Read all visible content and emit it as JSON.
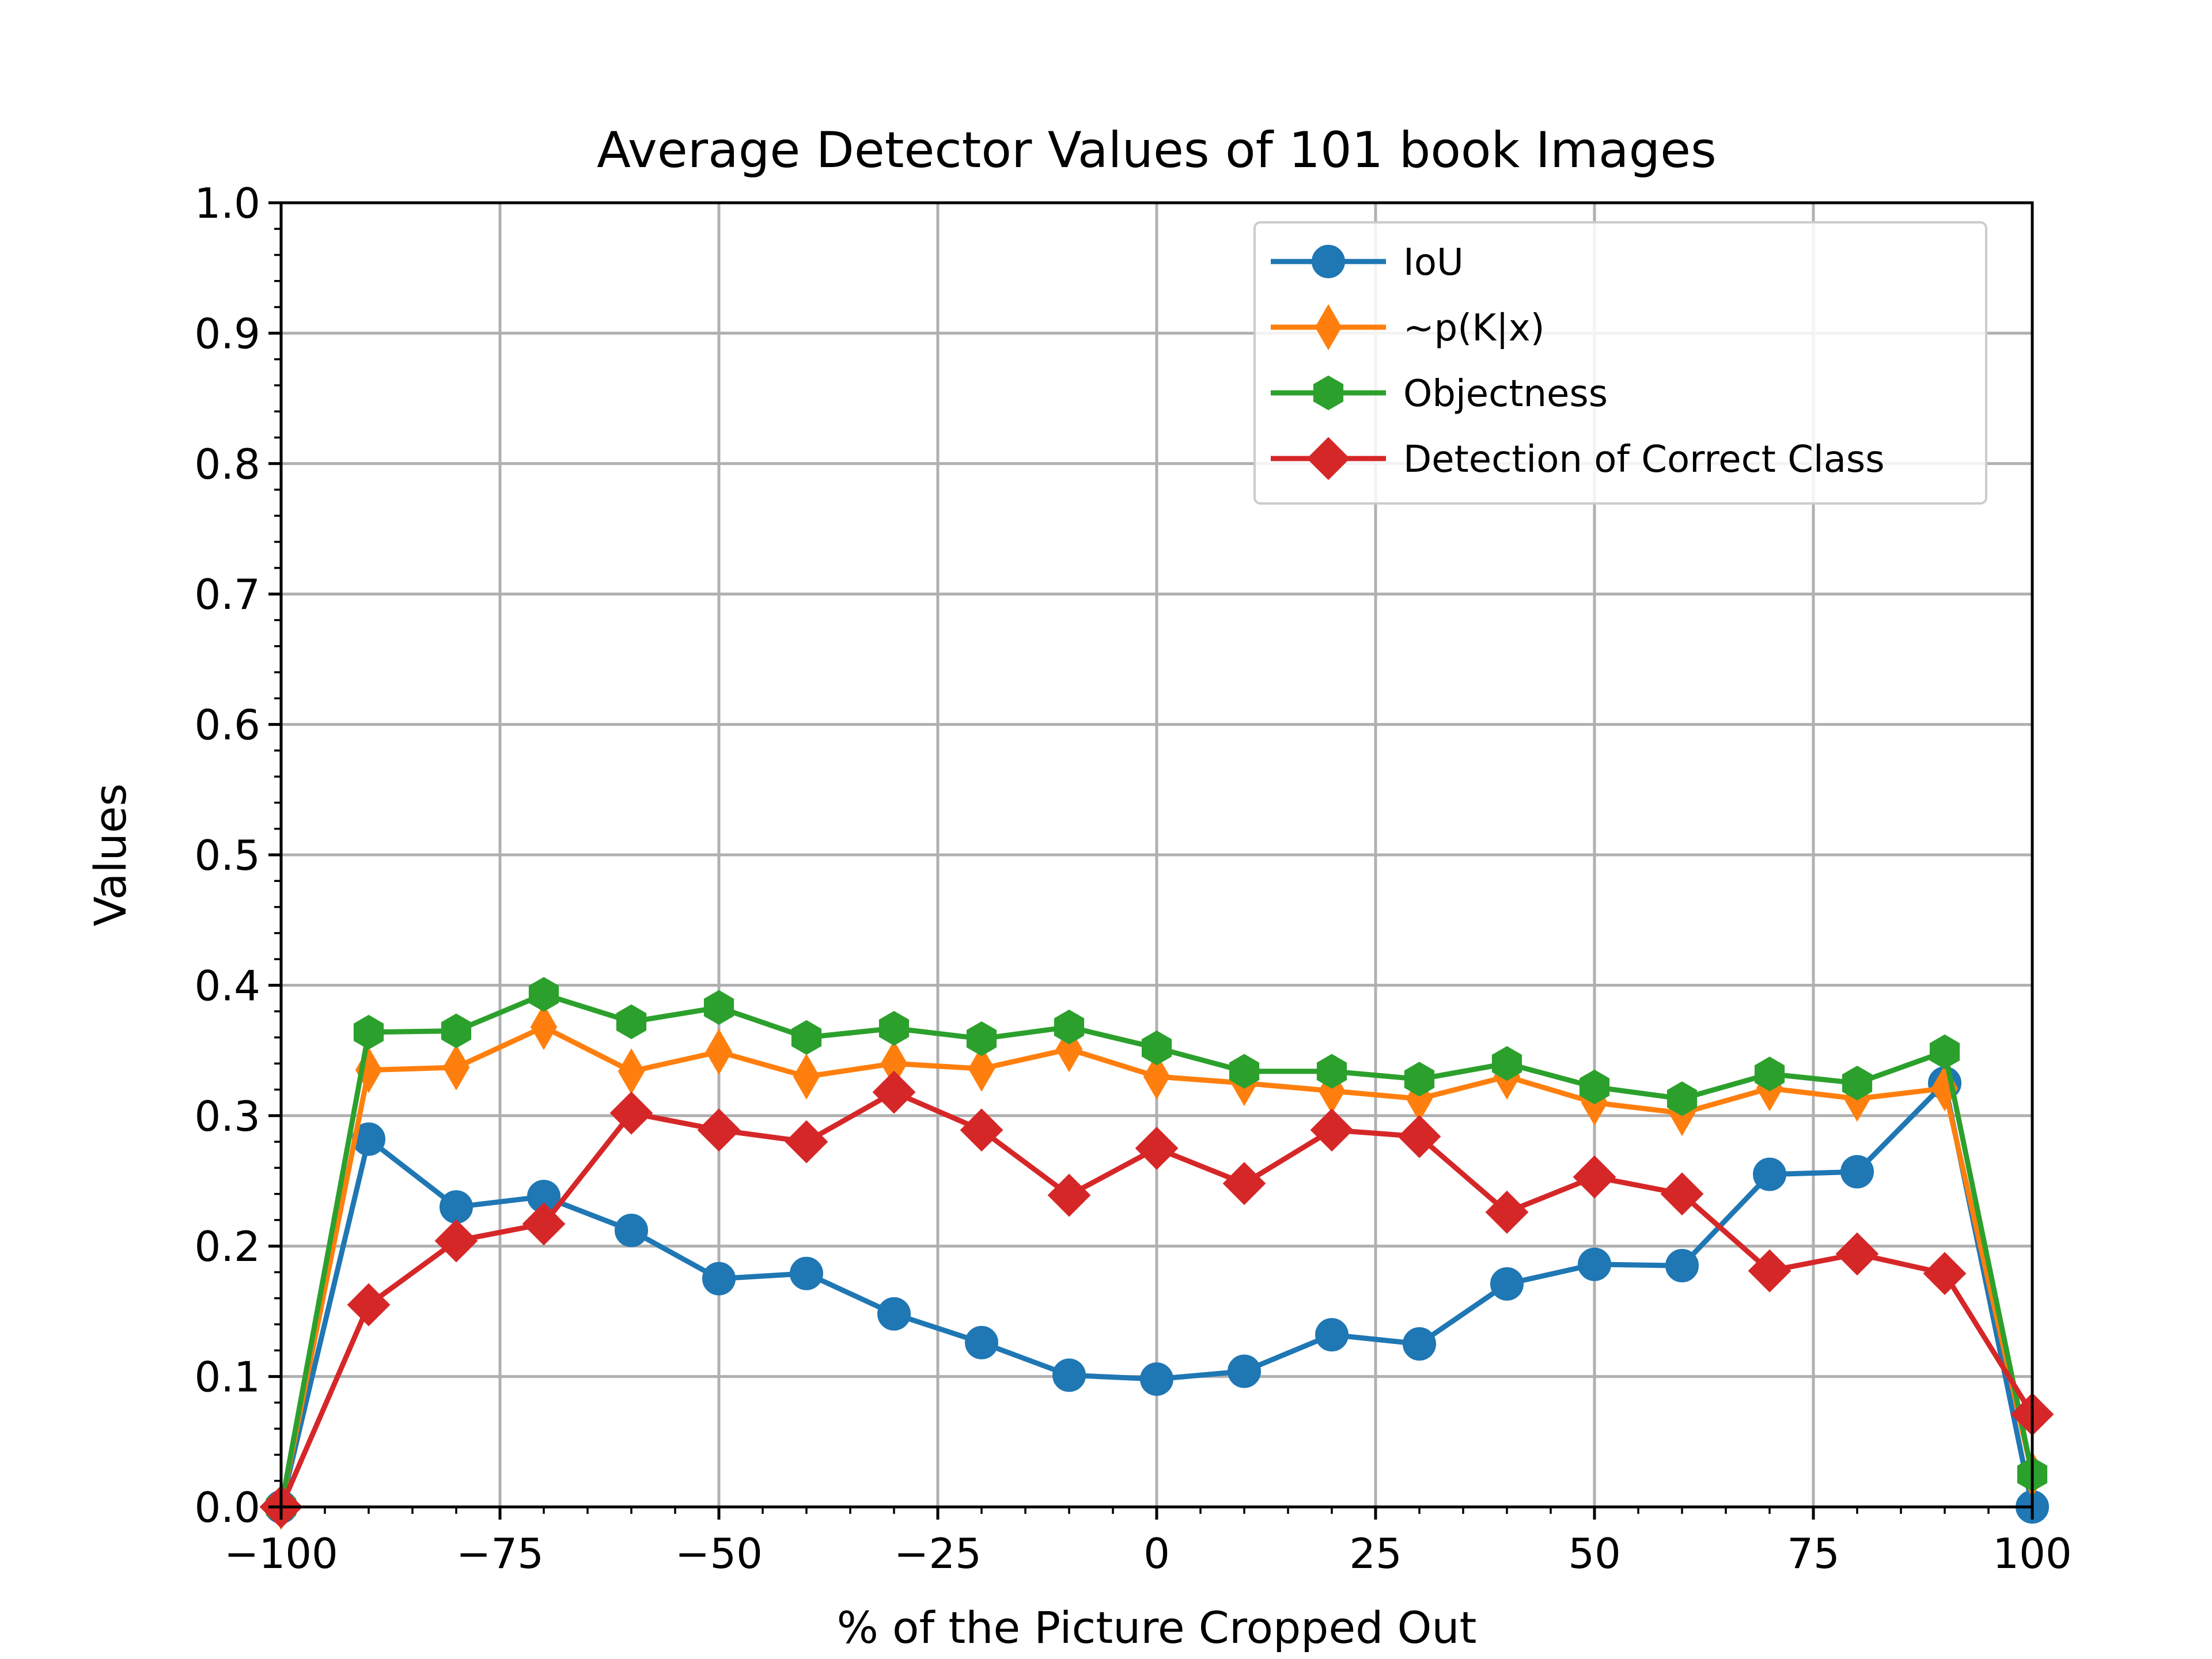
{
  "chart_data": {
    "type": "line",
    "title": "Average Detector Values of 101 book Images",
    "xlabel": "% of the Picture Cropped Out",
    "ylabel": "Values",
    "xlim": [
      -100,
      100
    ],
    "ylim": [
      0,
      1
    ],
    "xticks": [
      "−100",
      "−75",
      "−50",
      "−25",
      "0",
      "25",
      "50",
      "75",
      "100"
    ],
    "yticks": [
      "0.0",
      "0.1",
      "0.2",
      "0.3",
      "0.4",
      "0.5",
      "0.6",
      "0.7",
      "0.8",
      "0.9",
      "1.0"
    ],
    "grid": true,
    "legend_position": "top-right",
    "x": [
      -100,
      -90,
      -80,
      -70,
      -60,
      -50,
      -40,
      -30,
      -20,
      -10,
      0,
      10,
      20,
      30,
      40,
      50,
      60,
      70,
      80,
      90,
      100
    ],
    "series": [
      {
        "name": "IoU",
        "color": "#1f77b4",
        "marker": "circle",
        "values": [
          0.0,
          0.282,
          0.23,
          0.238,
          0.212,
          0.175,
          0.179,
          0.148,
          0.126,
          0.101,
          0.098,
          0.104,
          0.132,
          0.125,
          0.171,
          0.186,
          0.185,
          0.255,
          0.257,
          0.325,
          0.0
        ]
      },
      {
        "name": "~p(K|x)",
        "color": "#ff7f0e",
        "marker": "thin-diamond",
        "values": [
          0.0,
          0.335,
          0.337,
          0.368,
          0.334,
          0.349,
          0.33,
          0.34,
          0.336,
          0.351,
          0.33,
          0.325,
          0.319,
          0.313,
          0.33,
          0.31,
          0.302,
          0.321,
          0.313,
          0.321,
          0.025
        ]
      },
      {
        "name": "Objectness",
        "color": "#2ca02c",
        "marker": "hexagon",
        "values": [
          0.0,
          0.364,
          0.365,
          0.393,
          0.372,
          0.383,
          0.36,
          0.367,
          0.359,
          0.368,
          0.352,
          0.334,
          0.334,
          0.328,
          0.34,
          0.322,
          0.313,
          0.332,
          0.325,
          0.349,
          0.025
        ]
      },
      {
        "name": "Detection of Correct Class",
        "color": "#d62728",
        "marker": "diamond",
        "values": [
          0.0,
          0.155,
          0.204,
          0.217,
          0.302,
          0.289,
          0.28,
          0.318,
          0.289,
          0.239,
          0.275,
          0.248,
          0.289,
          0.284,
          0.226,
          0.253,
          0.24,
          0.181,
          0.194,
          0.179,
          0.071
        ]
      }
    ]
  }
}
